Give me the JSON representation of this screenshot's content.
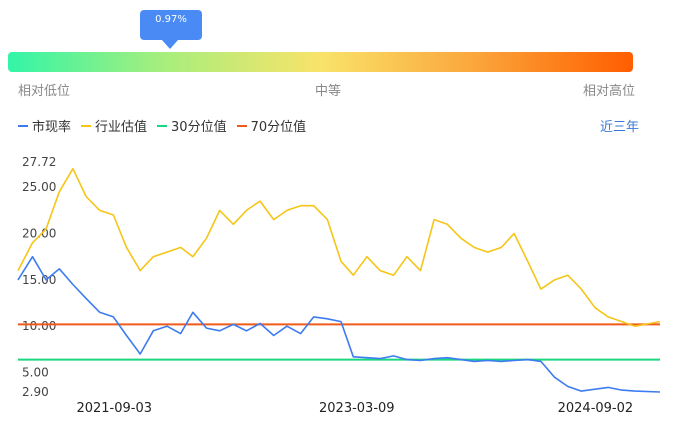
{
  "percentile_indicator": {
    "label": "0.97%",
    "value_percent": 0.97
  },
  "scale": {
    "low": "相对低位",
    "mid": "中等",
    "high": "相对高位"
  },
  "legend": [
    {
      "label": "市现率",
      "color": "#3d7cf0"
    },
    {
      "label": "行业估值",
      "color": "#f5c518"
    },
    {
      "label": "30分位值",
      "color": "#19d77f"
    },
    {
      "label": "70分位值",
      "color": "#f05a1a"
    }
  ],
  "range_button": "近三年",
  "chart_data": {
    "type": "line",
    "y_ticks": [
      "27.72",
      "25.00",
      "20.00",
      "15.00",
      "10.00",
      "5.00",
      "2.90"
    ],
    "x_ticks": [
      "2021-09-03",
      "2023-03-09",
      "2024-09-02"
    ],
    "ylim": [
      2.9,
      27.72
    ],
    "x_range": [
      "2021-01-27",
      "2025-01-27"
    ],
    "series": [
      {
        "name": "市现率",
        "color": "#3d7cf0",
        "x": [
          "2021-01-27",
          "2021-03-01",
          "2021-04-01",
          "2021-05-01",
          "2021-06-01",
          "2021-07-01",
          "2021-08-01",
          "2021-09-01",
          "2021-10-01",
          "2021-11-01",
          "2021-12-01",
          "2022-01-01",
          "2022-02-01",
          "2022-03-01",
          "2022-04-01",
          "2022-05-01",
          "2022-06-01",
          "2022-07-01",
          "2022-08-01",
          "2022-09-01",
          "2022-10-01",
          "2022-11-01",
          "2022-12-01",
          "2023-01-01",
          "2023-02-01",
          "2023-03-01",
          "2023-04-01",
          "2023-05-01",
          "2023-06-01",
          "2023-07-01",
          "2023-08-01",
          "2023-09-01",
          "2023-10-01",
          "2023-11-01",
          "2023-12-01",
          "2024-01-01",
          "2024-02-01",
          "2024-03-01",
          "2024-04-01",
          "2024-05-01",
          "2024-06-01",
          "2024-07-01",
          "2024-08-01",
          "2024-09-01",
          "2024-10-01",
          "2024-11-01",
          "2024-12-01",
          "2025-01-27"
        ],
        "values": [
          15.0,
          17.5,
          15.0,
          16.2,
          14.5,
          13.0,
          11.5,
          11.0,
          9.0,
          7.0,
          9.5,
          10.0,
          9.2,
          11.5,
          9.8,
          9.5,
          10.2,
          9.5,
          10.3,
          9.0,
          10.0,
          9.2,
          11.0,
          10.8,
          10.5,
          6.7,
          6.6,
          6.5,
          6.8,
          6.4,
          6.3,
          6.5,
          6.6,
          6.4,
          6.2,
          6.3,
          6.2,
          6.3,
          6.4,
          6.2,
          4.5,
          3.5,
          3.0,
          3.2,
          3.4,
          3.1,
          3.0,
          2.9
        ]
      },
      {
        "name": "行业估值",
        "color": "#f5c518",
        "x": [
          "2021-01-27",
          "2021-03-01",
          "2021-04-01",
          "2021-05-01",
          "2021-06-01",
          "2021-07-01",
          "2021-08-01",
          "2021-09-01",
          "2021-10-01",
          "2021-11-01",
          "2021-12-01",
          "2022-01-01",
          "2022-02-01",
          "2022-03-01",
          "2022-04-01",
          "2022-05-01",
          "2022-06-01",
          "2022-07-01",
          "2022-08-01",
          "2022-09-01",
          "2022-10-01",
          "2022-11-01",
          "2022-12-01",
          "2023-01-01",
          "2023-02-01",
          "2023-03-01",
          "2023-04-01",
          "2023-05-01",
          "2023-06-01",
          "2023-07-01",
          "2023-08-01",
          "2023-09-01",
          "2023-10-01",
          "2023-11-01",
          "2023-12-01",
          "2024-01-01",
          "2024-02-01",
          "2024-03-01",
          "2024-04-01",
          "2024-05-01",
          "2024-06-01",
          "2024-07-01",
          "2024-08-01",
          "2024-09-01",
          "2024-10-01",
          "2024-11-01",
          "2024-12-01",
          "2025-01-27"
        ],
        "values": [
          16.0,
          19.0,
          20.5,
          24.5,
          27.0,
          24.0,
          22.5,
          22.0,
          18.5,
          16.0,
          17.5,
          18.0,
          18.5,
          17.5,
          19.5,
          22.5,
          21.0,
          22.5,
          23.5,
          21.5,
          22.5,
          23.0,
          23.0,
          21.5,
          17.0,
          15.5,
          17.5,
          16.0,
          15.5,
          17.5,
          16.0,
          21.5,
          21.0,
          19.5,
          18.5,
          18.0,
          18.5,
          20.0,
          17.0,
          14.0,
          15.0,
          15.5,
          14.0,
          12.0,
          11.0,
          10.5,
          10.0,
          10.5
        ]
      },
      {
        "name": "30分位值",
        "color": "#19d77f",
        "x": [
          "2021-01-27",
          "2025-01-27"
        ],
        "values": [
          6.4,
          6.4
        ]
      },
      {
        "name": "70分位值",
        "color": "#f05a1a",
        "x": [
          "2021-01-27",
          "2025-01-27"
        ],
        "values": [
          10.2,
          10.2
        ]
      }
    ]
  }
}
